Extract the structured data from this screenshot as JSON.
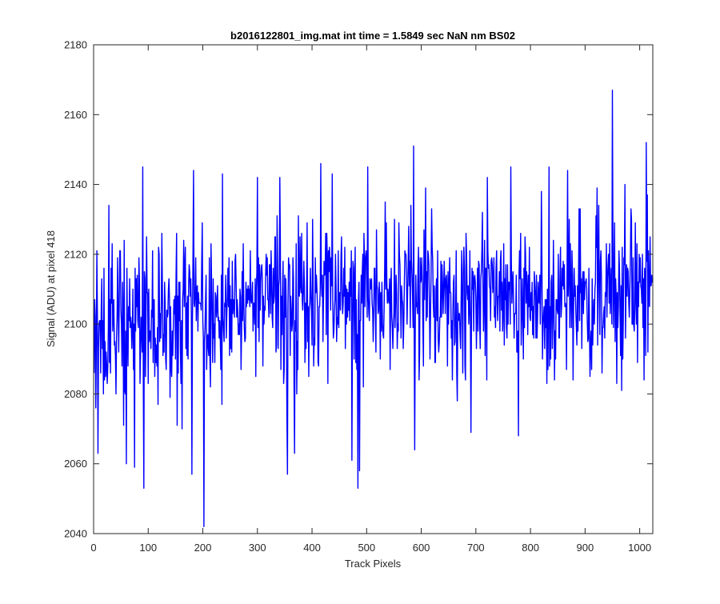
{
  "chart_data": {
    "type": "line",
    "title": "b2016122801_img.mat int time = 1.5849 sec  NaN nm BS02",
    "xlabel": "Track Pixels",
    "ylabel": "Signal (ADU) at pixel 418",
    "xlim": [
      0,
      1024
    ],
    "ylim": [
      2040,
      2180
    ],
    "xticks": [
      0,
      100,
      200,
      300,
      400,
      500,
      600,
      700,
      800,
      900,
      1000
    ],
    "yticks": [
      2040,
      2060,
      2080,
      2100,
      2120,
      2140,
      2160,
      2180
    ],
    "grid": false,
    "series_color": "#0000ff",
    "series": [
      {
        "x_start": 1,
        "x_step": 1,
        "noise_seed": 20161228,
        "noise_sigma": 11,
        "baseline_points": [
          [
            1,
            2093
          ],
          [
            100,
            2101
          ],
          [
            200,
            2103
          ],
          [
            300,
            2107
          ],
          [
            400,
            2107
          ],
          [
            500,
            2108
          ],
          [
            600,
            2108
          ],
          [
            700,
            2107
          ],
          [
            800,
            2108
          ],
          [
            900,
            2108
          ],
          [
            1024,
            2113
          ]
        ],
        "peaks": [
          [
            4,
            2076
          ],
          [
            8,
            2063
          ],
          [
            28,
            2134
          ],
          [
            55,
            2071
          ],
          [
            60,
            2060
          ],
          [
            75,
            2059
          ],
          [
            90,
            2145
          ],
          [
            92,
            2053
          ],
          [
            180,
            2057
          ],
          [
            183,
            2144
          ],
          [
            202,
            2042
          ],
          [
            236,
            2143
          ],
          [
            300,
            2142
          ],
          [
            341,
            2142
          ],
          [
            355,
            2057
          ],
          [
            368,
            2063
          ],
          [
            416,
            2146
          ],
          [
            437,
            2143
          ],
          [
            473,
            2061
          ],
          [
            484,
            2053
          ],
          [
            487,
            2058
          ],
          [
            502,
            2145
          ],
          [
            586,
            2151
          ],
          [
            588,
            2064
          ],
          [
            691,
            2069
          ],
          [
            721,
            2142
          ],
          [
            764,
            2145
          ],
          [
            778,
            2068
          ],
          [
            834,
            2145
          ],
          [
            868,
            2144
          ],
          [
            950,
            2167
          ],
          [
            958,
            2083
          ],
          [
            967,
            2081
          ],
          [
            1012,
            2152
          ],
          [
            1015,
            2092
          ]
        ]
      }
    ]
  }
}
